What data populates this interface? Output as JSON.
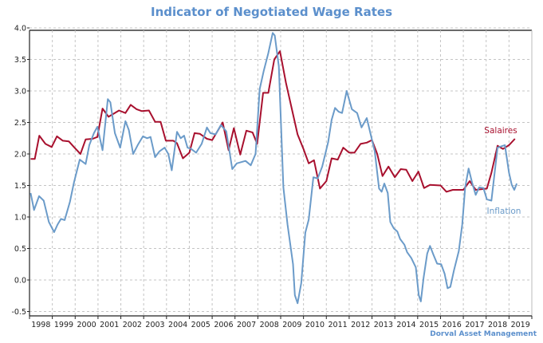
{
  "chart_data": {
    "type": "line",
    "title": "Indicator of Negotiated Wage Rates",
    "source": "Dorval Asset Management",
    "xlim": [
      1998,
      2020
    ],
    "ylim": [
      -0.5,
      4.0
    ],
    "y_ticks": [
      "-0.5",
      "0.0",
      "0.5",
      "1.0",
      "1.5",
      "2.0",
      "2.5",
      "3.0",
      "3.5",
      "4.0"
    ],
    "x_ticks": [
      "1998",
      "1999",
      "2000",
      "2001",
      "2002",
      "2003",
      "2004",
      "2005",
      "2006",
      "2007",
      "2008",
      "2009",
      "2010",
      "2011",
      "2012",
      "2013",
      "2014",
      "2015",
      "2016",
      "2017",
      "2018",
      "2019"
    ],
    "grid": true,
    "series": [
      {
        "name": "Salaires",
        "color": "#a8102e",
        "x": [
          1998.05,
          1998.23,
          1998.43,
          1998.7,
          1998.97,
          1999.2,
          1999.46,
          1999.72,
          1999.97,
          2000.23,
          2000.46,
          2000.77,
          2000.97,
          2001.2,
          2001.46,
          2001.92,
          2002.2,
          2002.43,
          2002.69,
          2002.92,
          2003.23,
          2003.5,
          2003.74,
          2003.97,
          2004.3,
          2004.46,
          2004.72,
          2005.0,
          2005.23,
          2005.46,
          2005.77,
          2006.0,
          2006.46,
          2006.72,
          2006.95,
          2007.23,
          2007.5,
          2007.77,
          2007.97,
          2008.23,
          2008.46,
          2008.72,
          2008.97,
          2009.23,
          2009.46,
          2009.74,
          2010.0,
          2010.23,
          2010.46,
          2010.72,
          2011.0,
          2011.23,
          2011.5,
          2011.74,
          2012.0,
          2012.23,
          2012.5,
          2012.77,
          2013.0,
          2013.23,
          2013.46,
          2013.72,
          2014.0,
          2014.26,
          2014.5,
          2014.77,
          2015.03,
          2015.28,
          2015.54,
          2016.0,
          2016.26,
          2016.54,
          2017.0,
          2017.28,
          2017.54,
          2018.03,
          2018.23,
          2018.5,
          2018.74,
          2019.0,
          2019.26
        ],
        "y": [
          1.92,
          1.92,
          2.29,
          2.16,
          2.11,
          2.28,
          2.21,
          2.2,
          2.1,
          2.0,
          2.23,
          2.24,
          2.27,
          2.72,
          2.59,
          2.69,
          2.65,
          2.78,
          2.71,
          2.68,
          2.69,
          2.51,
          2.51,
          2.21,
          2.21,
          2.17,
          1.93,
          2.02,
          2.33,
          2.32,
          2.24,
          2.22,
          2.5,
          2.06,
          2.41,
          1.99,
          2.37,
          2.34,
          2.16,
          2.97,
          2.97,
          3.5,
          3.63,
          3.13,
          2.76,
          2.31,
          2.08,
          1.85,
          1.9,
          1.45,
          1.57,
          1.93,
          1.91,
          2.1,
          2.02,
          2.02,
          2.16,
          2.18,
          2.22,
          2.0,
          1.65,
          1.8,
          1.63,
          1.76,
          1.75,
          1.57,
          1.72,
          1.46,
          1.51,
          1.5,
          1.4,
          1.43,
          1.43,
          1.57,
          1.43,
          1.45,
          1.7,
          2.13,
          2.08,
          2.14,
          2.24
        ]
      },
      {
        "name": "Inflation",
        "color": "#6b9bc9",
        "x": [
          1998.05,
          1998.2,
          1998.42,
          1998.62,
          1998.85,
          1999.08,
          1999.23,
          1999.38,
          1999.54,
          1999.77,
          1999.95,
          2000.2,
          2000.46,
          2000.62,
          2000.82,
          2000.97,
          2001.2,
          2001.43,
          2001.54,
          2001.74,
          2001.97,
          2002.2,
          2002.35,
          2002.54,
          2002.74,
          2002.97,
          2003.15,
          2003.3,
          2003.5,
          2003.69,
          2003.92,
          2004.08,
          2004.23,
          2004.46,
          2004.62,
          2004.77,
          2004.92,
          2005.08,
          2005.3,
          2005.54,
          2005.77,
          2005.92,
          2006.15,
          2006.38,
          2006.62,
          2006.88,
          2007.08,
          2007.46,
          2007.69,
          2007.9,
          2008.08,
          2008.26,
          2008.46,
          2008.65,
          2008.74,
          2008.92,
          2009.12,
          2009.3,
          2009.54,
          2009.62,
          2009.74,
          2009.9,
          2010.08,
          2010.23,
          2010.43,
          2010.62,
          2010.82,
          2011.08,
          2011.23,
          2011.38,
          2011.54,
          2011.69,
          2011.89,
          2012.12,
          2012.35,
          2012.54,
          2012.77,
          2012.92,
          2013.12,
          2013.31,
          2013.42,
          2013.54,
          2013.69,
          2013.8,
          2013.95,
          2014.11,
          2014.23,
          2014.42,
          2014.54,
          2014.72,
          2014.92,
          2015.05,
          2015.14,
          2015.26,
          2015.42,
          2015.54,
          2015.69,
          2015.85,
          2016.03,
          2016.18,
          2016.31,
          2016.43,
          2016.58,
          2016.8,
          2016.95,
          2017.08,
          2017.23,
          2017.38,
          2017.54,
          2017.69,
          2017.88,
          2018.03,
          2018.23,
          2018.5,
          2018.82,
          2019.0,
          2019.12,
          2019.23,
          2019.34
        ],
        "y": [
          1.38,
          1.11,
          1.33,
          1.26,
          0.92,
          0.76,
          0.88,
          0.97,
          0.95,
          1.24,
          1.55,
          1.91,
          1.84,
          2.14,
          2.33,
          2.43,
          2.06,
          2.87,
          2.82,
          2.33,
          2.1,
          2.52,
          2.38,
          2.0,
          2.14,
          2.28,
          2.25,
          2.27,
          1.95,
          2.04,
          2.1,
          2.0,
          1.74,
          2.35,
          2.25,
          2.29,
          2.1,
          2.08,
          2.02,
          2.16,
          2.42,
          2.33,
          2.31,
          2.46,
          2.36,
          1.76,
          1.85,
          1.89,
          1.82,
          2.0,
          3.03,
          3.32,
          3.6,
          3.92,
          3.88,
          3.39,
          1.47,
          0.88,
          0.25,
          -0.24,
          -0.37,
          -0.05,
          0.75,
          0.96,
          1.63,
          1.61,
          1.8,
          2.19,
          2.54,
          2.73,
          2.67,
          2.65,
          3.0,
          2.71,
          2.65,
          2.42,
          2.57,
          2.34,
          2.04,
          1.45,
          1.4,
          1.53,
          1.38,
          0.92,
          0.82,
          0.77,
          0.65,
          0.56,
          0.44,
          0.35,
          0.2,
          -0.24,
          -0.34,
          0.04,
          0.42,
          0.54,
          0.4,
          0.26,
          0.25,
          0.1,
          -0.13,
          -0.11,
          0.14,
          0.46,
          0.88,
          1.47,
          1.77,
          1.55,
          1.35,
          1.47,
          1.46,
          1.28,
          1.26,
          2.1,
          2.14,
          1.7,
          1.51,
          1.43,
          1.53
        ]
      }
    ]
  }
}
